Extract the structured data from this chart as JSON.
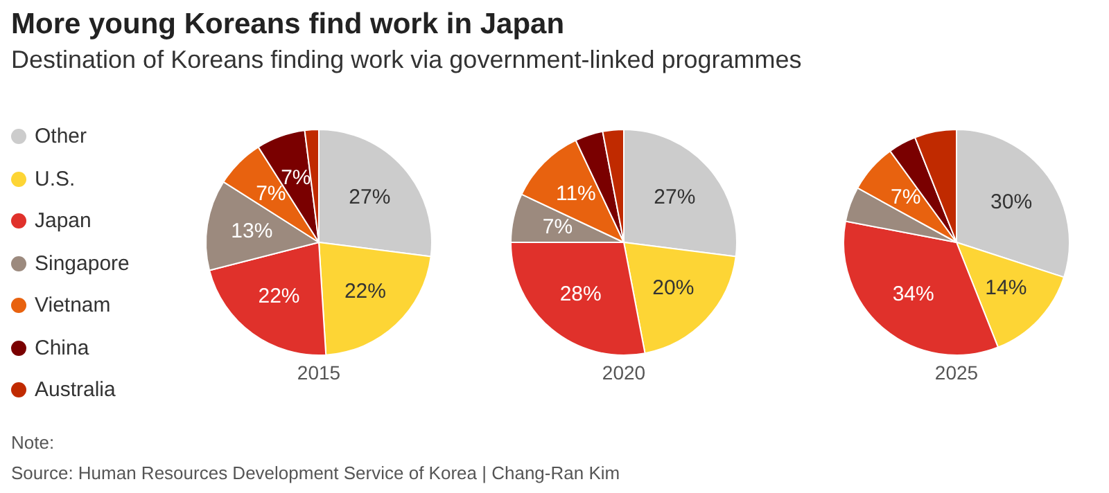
{
  "chart_data": [
    {
      "type": "pie",
      "title": "More young Koreans find work in Japan",
      "subtitle": "Destination of Koreans finding work via government-linked programmes",
      "xlabel": "2015",
      "legend": "left",
      "categories": [
        "Other",
        "U.S.",
        "Japan",
        "Singapore",
        "Vietnam",
        "China",
        "Australia"
      ],
      "colors": [
        "#cccccc",
        "#fdd535",
        "#e0312b",
        "#9c8a7e",
        "#e8620f",
        "#7a0000",
        "#c02a00"
      ],
      "values": [
        27,
        22,
        22,
        13,
        7,
        7,
        2
      ],
      "value_labels": [
        "27%",
        "22%",
        "22%",
        "13%",
        "7%",
        "7%",
        null
      ],
      "annotations": [
        "Note:",
        "Source: Human Resources Development Service of Korea  | Chang-Ran Kim"
      ]
    },
    {
      "type": "pie",
      "xlabel": "2020",
      "categories": [
        null,
        null,
        null,
        null,
        null,
        null,
        null
      ],
      "colors": [
        "#cccccc",
        "#fdd535",
        "#e0312b",
        "#9c8a7e",
        "#e8620f",
        "#7a0000",
        "#c02a00"
      ],
      "values": [
        27,
        20,
        28,
        7,
        11,
        4,
        3
      ],
      "value_labels": [
        "27%",
        "20%",
        "28%",
        "7%",
        "11%",
        null,
        null
      ]
    },
    {
      "type": "pie",
      "xlabel": "2025",
      "categories": [
        null,
        null,
        null,
        null,
        null,
        null,
        null
      ],
      "colors": [
        "#cccccc",
        "#fdd535",
        "#e0312b",
        "#9c8a7e",
        "#e8620f",
        "#7a0000",
        "#c02a00"
      ],
      "values": [
        30,
        14,
        34,
        5,
        7,
        4,
        6
      ],
      "value_labels": [
        "30%",
        "14%",
        "34%",
        null,
        "7%",
        null,
        null
      ]
    }
  ]
}
